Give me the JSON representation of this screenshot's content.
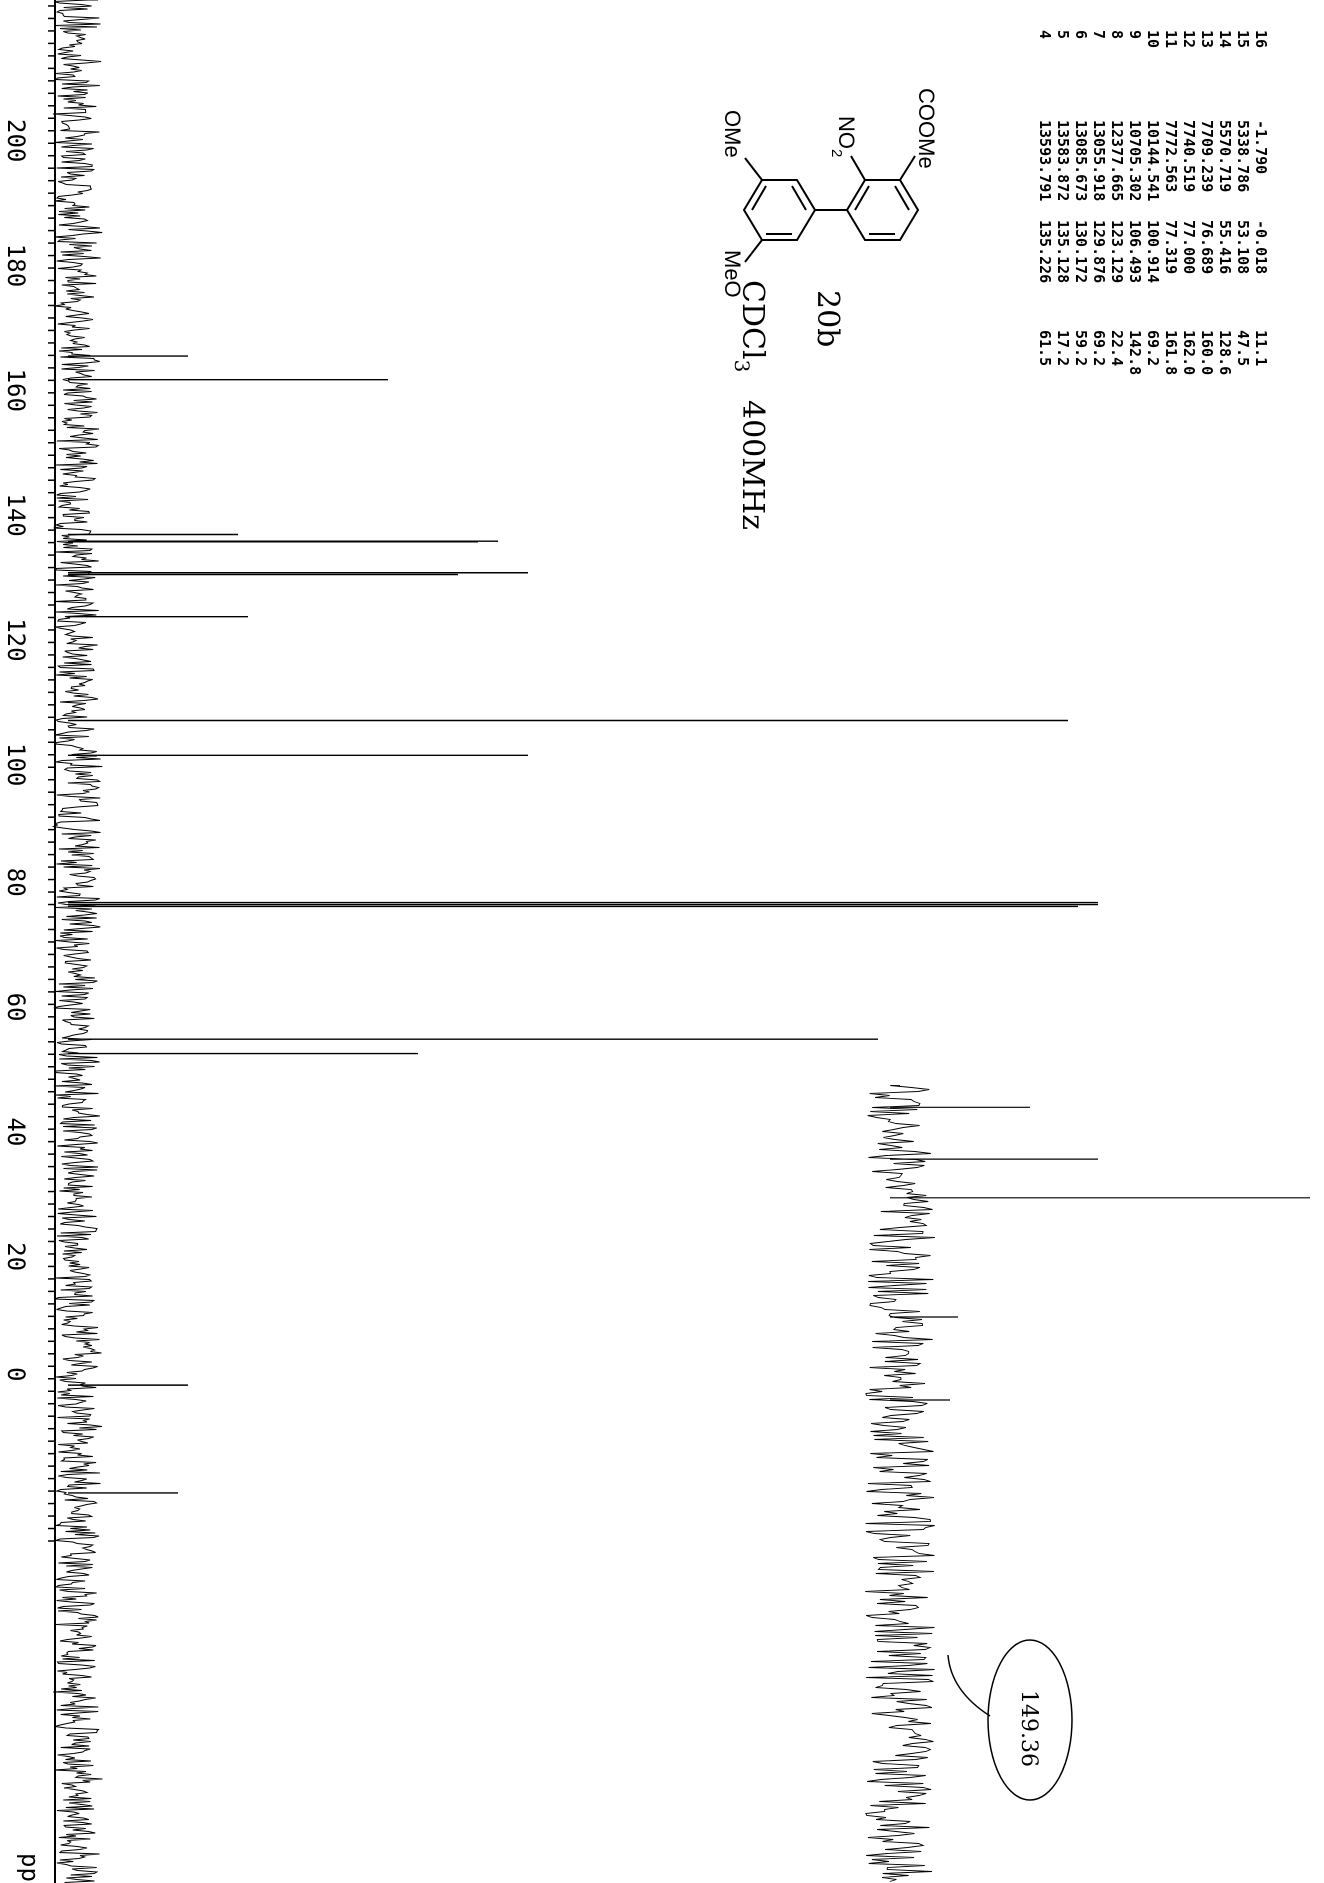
{
  "chart_data": {
    "type": "line",
    "title": "",
    "xlabel": "ppm",
    "ylabel": "",
    "xlim": [
      -25,
      222
    ],
    "x_ticks": [
      200,
      180,
      160,
      140,
      120,
      100,
      80,
      60,
      40,
      20,
      0
    ],
    "x_unit_label": "ppm",
    "orientation": "rotated 90° clockwise (ppm axis runs down the left edge)",
    "peaks": [
      {
        "ppm": 164.9,
        "height": 0.09
      },
      {
        "ppm": 161.1,
        "height": 0.29
      },
      {
        "ppm": 136.3,
        "height": 0.14
      },
      {
        "ppm": 135.23,
        "height": 0.4
      },
      {
        "ppm": 135.13,
        "height": 0.38
      },
      {
        "ppm": 130.17,
        "height": 0.43
      },
      {
        "ppm": 129.88,
        "height": 0.36
      },
      {
        "ppm": 123.13,
        "height": 0.15
      },
      {
        "ppm": 106.49,
        "height": 0.97
      },
      {
        "ppm": 100.91,
        "height": 0.43
      },
      {
        "ppm": 77.32,
        "height": 1.0
      },
      {
        "ppm": 77.0,
        "height": 1.0
      },
      {
        "ppm": 76.69,
        "height": 0.98
      },
      {
        "ppm": 55.42,
        "height": 0.78
      },
      {
        "ppm": 53.11,
        "height": 0.32
      },
      {
        "ppm": -0.02,
        "height": 0.09
      },
      {
        "ppm": -17.3,
        "height": 0.08
      }
    ],
    "inset_peaks": [
      {
        "ppm": 44.5,
        "height": 0.3
      },
      {
        "ppm": 36.2,
        "height": 0.47
      },
      {
        "ppm": 30.0,
        "height": 1.0
      },
      {
        "ppm": 10.9,
        "height": 0.12
      },
      {
        "ppm": -2.4,
        "height": 0.1
      }
    ]
  },
  "peak_table": [
    {
      "index": "4",
      "hz": "13593.791",
      "ppm": "135.226",
      "height": "61.5"
    },
    {
      "index": "5",
      "hz": "13583.872",
      "ppm": "135.128",
      "height": "17.2"
    },
    {
      "index": "6",
      "hz": "13085.673",
      "ppm": "130.172",
      "height": "59.2"
    },
    {
      "index": "7",
      "hz": "13055.918",
      "ppm": "129.876",
      "height": "69.2"
    },
    {
      "index": "8",
      "hz": "12377.665",
      "ppm": "123.129",
      "height": "22.4"
    },
    {
      "index": "9",
      "hz": "10705.302",
      "ppm": "106.493",
      "height": "142.8"
    },
    {
      "index": "10",
      "hz": "10144.541",
      "ppm": "100.914",
      "height": "69.2"
    },
    {
      "index": "11",
      "hz": "7772.563",
      "ppm": "77.319",
      "height": "161.8"
    },
    {
      "index": "12",
      "hz": "7740.519",
      "ppm": "77.000",
      "height": "162.0"
    },
    {
      "index": "13",
      "hz": "7709.239",
      "ppm": "76.689",
      "height": "160.0"
    },
    {
      "index": "14",
      "hz": "5570.719",
      "ppm": "55.416",
      "height": "128.6"
    },
    {
      "index": "15",
      "hz": "5338.786",
      "ppm": "53.108",
      "height": "47.5"
    },
    {
      "index": "16",
      "hz": "-1.790",
      "ppm": "-0.018",
      "height": "11.1"
    }
  ],
  "molecule": {
    "substituent_ester": "COOMe",
    "substituent_nitro": "NO",
    "nitro_subscript": "2",
    "substituent_methoxy_left": "MeO",
    "substituent_methoxy_right": "OMe"
  },
  "annotations": {
    "compound_id": "20b",
    "solvent": "CDCl",
    "solvent_subscript": "3",
    "frequency": "400MHz",
    "circled_value": "149.36"
  },
  "colors": {
    "ink": "#000000",
    "background": "#ffffff"
  }
}
